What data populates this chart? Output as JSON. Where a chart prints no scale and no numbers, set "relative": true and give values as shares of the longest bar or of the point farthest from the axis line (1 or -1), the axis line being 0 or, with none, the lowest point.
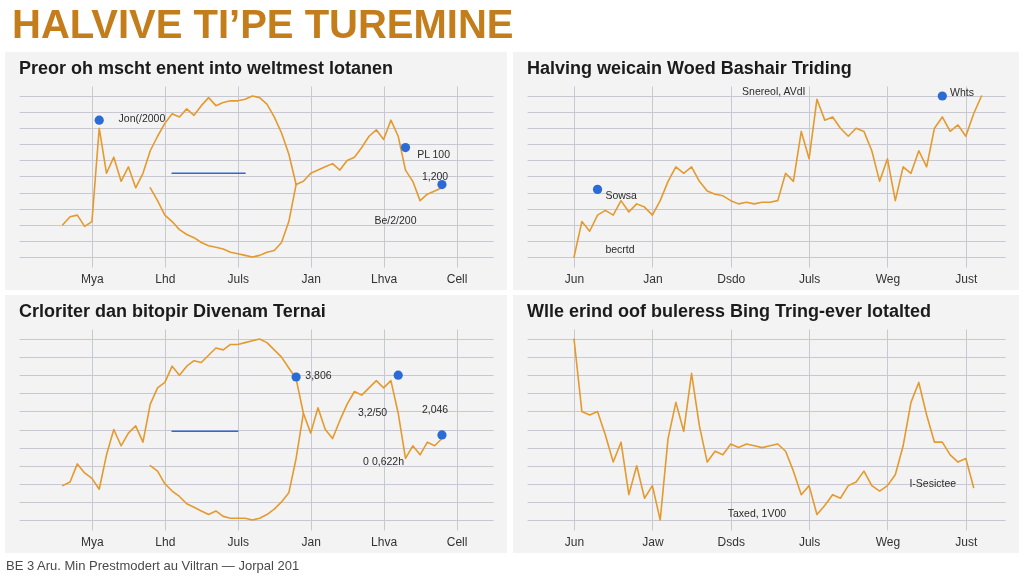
{
  "chart_data": [
    {
      "type": "other",
      "title": "HALVIVE TI’PE TUREMINE"
    },
    {
      "type": "line",
      "title": "Preor oh mscht enent into weltmest lotanen",
      "relative": true,
      "grid": true,
      "categories": [
        null,
        null,
        null,
        null,
        null,
        null,
        null,
        null,
        null,
        null,
        "Mya",
        null,
        null,
        null,
        null,
        null,
        null,
        null,
        null,
        null,
        "Lhd",
        null,
        null,
        null,
        null,
        null,
        null,
        null,
        null,
        null,
        "Juls",
        null,
        null,
        null,
        null,
        null,
        null,
        null,
        null,
        null,
        "Jan",
        null,
        null,
        null,
        null,
        null,
        null,
        null,
        null,
        null,
        "Lhva",
        null,
        null,
        null,
        null,
        null,
        null,
        null,
        null,
        null,
        "Cell",
        null,
        null,
        null,
        null,
        null
      ],
      "series": [
        {
          "color": "#e49a2f",
          "values": [
            null,
            null,
            null,
            null,
            null,
            null,
            0.2,
            0.25,
            0.26,
            0.19,
            0.22,
            0.8,
            0.52,
            0.62,
            0.47,
            0.56,
            0.43,
            0.52,
            0.66,
            0.75,
            0.83,
            0.89,
            0.87,
            0.92,
            0.88,
            0.94,
            0.99,
            0.94,
            0.96,
            0.97,
            0.97,
            0.98,
            1,
            0.99,
            0.95,
            0.87,
            0.77,
            0.64,
            0.45,
            0.47,
            0.52,
            0.54,
            0.56,
            0.58,
            0.54,
            0.6,
            0.62,
            0.68,
            0.75,
            0.79,
            0.73,
            0.85,
            0.75,
            0.54,
            0.47,
            0.35,
            0.39,
            0.41,
            0.43,
            null,
            null,
            null,
            null,
            null,
            null,
            null
          ]
        },
        {
          "color": "#e49a2f",
          "values": [
            null,
            null,
            null,
            null,
            null,
            null,
            null,
            null,
            null,
            null,
            null,
            null,
            null,
            null,
            null,
            null,
            null,
            null,
            0.43,
            0.35,
            0.26,
            0.22,
            0.17,
            0.14,
            0.12,
            0.09,
            0.07,
            0.06,
            0.05,
            0.03,
            0.02,
            0.01,
            0,
            0.01,
            0.03,
            0.04,
            0.09,
            0.22,
            0.45,
            null,
            null,
            null,
            null,
            null,
            null,
            null,
            null,
            null,
            null,
            null,
            null,
            null,
            null,
            null,
            null,
            null,
            null,
            null,
            null,
            null,
            null,
            null,
            null,
            null,
            null,
            null
          ]
        },
        {
          "color": "#2a6bd6",
          "values": [
            null,
            null,
            null,
            null,
            null,
            null,
            null,
            null,
            null,
            null,
            null,
            null,
            null,
            null,
            null,
            null,
            null,
            null,
            null,
            null,
            null,
            0.52,
            0.52,
            0.52,
            0.52,
            0.52,
            0.52,
            0.52,
            0.52,
            0.52,
            0.52,
            0.52,
            null,
            null,
            null,
            null,
            null,
            null,
            null,
            null,
            null,
            null,
            null,
            null,
            null,
            null,
            null,
            null,
            null,
            null,
            null,
            null,
            null,
            null,
            null,
            null,
            null,
            null,
            null,
            null,
            null,
            null,
            null,
            null,
            null,
            null
          ]
        },
        {
          "type": "scatter",
          "marker": "circle",
          "color": "#2a6bd6",
          "values": [
            null,
            null,
            null,
            null,
            null,
            null,
            null,
            null,
            null,
            null,
            null,
            0.85,
            null,
            null,
            null,
            null,
            null,
            null,
            null,
            null,
            null,
            null,
            null,
            null,
            null,
            null,
            null,
            null,
            null,
            null,
            null,
            null,
            null,
            null,
            null,
            null,
            null,
            null,
            null,
            null,
            null,
            null,
            null,
            null,
            null,
            null,
            null,
            null,
            null,
            null,
            null,
            null,
            null,
            0.68,
            null,
            null,
            null,
            null,
            0.45,
            null,
            null,
            null,
            null,
            null,
            null,
            null
          ]
        }
      ],
      "annotations": [
        "Jon(/2000",
        "PL 100",
        "1,200",
        "Be/2/200"
      ]
    },
    {
      "type": "line",
      "title": "Halving weicain Woed Bashair Triding",
      "relative": true,
      "grid": true,
      "categories": [
        null,
        null,
        null,
        null,
        null,
        null,
        "Jun",
        null,
        null,
        null,
        null,
        null,
        null,
        null,
        null,
        null,
        "Jan",
        null,
        null,
        null,
        null,
        null,
        null,
        null,
        null,
        null,
        "Dsdo",
        null,
        null,
        null,
        null,
        null,
        null,
        null,
        null,
        null,
        "Juls",
        null,
        null,
        null,
        null,
        null,
        null,
        null,
        null,
        null,
        "Weg",
        null,
        null,
        null,
        null,
        null,
        null,
        null,
        null,
        null,
        "Just",
        null,
        null,
        null,
        null,
        null
      ],
      "series": [
        {
          "color": "#e49a2f",
          "values": [
            null,
            null,
            null,
            null,
            null,
            null,
            0,
            0.22,
            0.16,
            0.26,
            0.29,
            0.26,
            0.35,
            0.28,
            0.33,
            0.31,
            0.26,
            0.35,
            0.47,
            0.56,
            0.52,
            0.56,
            0.47,
            0.41,
            0.39,
            0.38,
            0.35,
            0.33,
            0.34,
            0.33,
            0.34,
            0.34,
            0.35,
            0.52,
            0.47,
            0.78,
            0.61,
            0.98,
            0.85,
            0.87,
            0.8,
            0.75,
            0.8,
            0.78,
            0.66,
            0.47,
            0.61,
            0.35,
            0.56,
            0.52,
            0.66,
            0.56,
            0.8,
            0.87,
            0.78,
            0.82,
            0.75,
            0.89,
            1,
            null,
            null,
            null
          ]
        },
        {
          "type": "scatter",
          "marker": "circle",
          "color": "#2a6bd6",
          "values": [
            null,
            null,
            null,
            null,
            null,
            null,
            null,
            null,
            null,
            0.42,
            null,
            null,
            null,
            null,
            null,
            null,
            null,
            null,
            null,
            null,
            null,
            null,
            null,
            null,
            null,
            null,
            null,
            null,
            null,
            null,
            null,
            null,
            null,
            null,
            null,
            null,
            null,
            null,
            null,
            null,
            null,
            null,
            null,
            null,
            null,
            null,
            null,
            null,
            null,
            null,
            null,
            null,
            null,
            1,
            null,
            null,
            null,
            null,
            null,
            null,
            null,
            null
          ]
        }
      ],
      "annotations": [
        "Snereol, AVdI",
        "Sowsa",
        "becrtd",
        "Whts"
      ]
    },
    {
      "type": "line",
      "title": "Crloriter dan bitopir Divenam Ternai",
      "relative": true,
      "grid": true,
      "categories": [
        null,
        null,
        null,
        null,
        null,
        null,
        null,
        null,
        null,
        null,
        "Mya",
        null,
        null,
        null,
        null,
        null,
        null,
        null,
        null,
        null,
        "Lhd",
        null,
        null,
        null,
        null,
        null,
        null,
        null,
        null,
        null,
        "Juls",
        null,
        null,
        null,
        null,
        null,
        null,
        null,
        null,
        null,
        "Jan",
        null,
        null,
        null,
        null,
        null,
        null,
        null,
        null,
        null,
        "Lhva",
        null,
        null,
        null,
        null,
        null,
        null,
        null,
        null,
        null,
        "Cell",
        null,
        null,
        null,
        null,
        null
      ],
      "series": [
        {
          "color": "#e49a2f",
          "values": [
            null,
            null,
            null,
            null,
            null,
            null,
            0.19,
            0.21,
            0.31,
            0.26,
            0.23,
            0.17,
            0.36,
            0.5,
            0.41,
            0.48,
            0.52,
            0.43,
            0.64,
            0.73,
            0.76,
            0.85,
            0.8,
            0.85,
            0.88,
            0.87,
            0.91,
            0.95,
            0.94,
            0.97,
            0.97,
            0.98,
            0.99,
            1,
            0.98,
            0.94,
            0.9,
            0.84,
            0.78,
            0.59,
            0.48,
            0.62,
            0.5,
            0.45,
            0.55,
            0.64,
            0.71,
            0.69,
            0.73,
            0.77,
            0.73,
            0.77,
            0.59,
            0.34,
            0.41,
            0.36,
            0.43,
            0.41,
            0.45,
            null,
            null,
            null,
            null,
            null,
            null,
            null
          ]
        },
        {
          "color": "#e49a2f",
          "values": [
            null,
            null,
            null,
            null,
            null,
            null,
            null,
            null,
            null,
            null,
            null,
            null,
            null,
            null,
            null,
            null,
            null,
            null,
            0.3,
            0.27,
            0.2,
            0.16,
            0.13,
            0.09,
            0.07,
            0.05,
            0.03,
            0.05,
            0.02,
            0.01,
            0.01,
            0.01,
            0,
            0.01,
            0.03,
            0.06,
            0.1,
            0.15,
            0.34,
            0.59,
            null,
            null,
            null,
            null,
            null,
            null,
            null,
            null,
            null,
            null,
            null,
            null,
            null,
            null,
            null,
            null,
            null,
            null,
            null,
            null,
            null,
            null,
            null,
            null,
            null,
            null
          ]
        },
        {
          "color": "#2a6bd6",
          "values": [
            null,
            null,
            null,
            null,
            null,
            null,
            null,
            null,
            null,
            null,
            null,
            null,
            null,
            null,
            null,
            null,
            null,
            null,
            null,
            null,
            null,
            0.49,
            0.49,
            0.49,
            0.49,
            0.49,
            0.49,
            0.49,
            0.49,
            0.49,
            0.49,
            null,
            null,
            null,
            null,
            null,
            null,
            null,
            null,
            null,
            null,
            null,
            null,
            null,
            null,
            null,
            null,
            null,
            null,
            null,
            null,
            null,
            null,
            null,
            null,
            null,
            null,
            null,
            null,
            null,
            null,
            null,
            null,
            null,
            null,
            null
          ]
        },
        {
          "type": "scatter",
          "marker": "circle",
          "color": "#2a6bd6",
          "values": [
            null,
            null,
            null,
            null,
            null,
            null,
            null,
            null,
            null,
            null,
            null,
            null,
            null,
            null,
            null,
            null,
            null,
            null,
            null,
            null,
            null,
            null,
            null,
            null,
            null,
            null,
            null,
            null,
            null,
            null,
            null,
            null,
            null,
            null,
            null,
            null,
            null,
            null,
            0.79,
            null,
            null,
            null,
            null,
            null,
            null,
            null,
            null,
            null,
            null,
            null,
            null,
            null,
            0.8,
            null,
            null,
            null,
            null,
            null,
            0.47,
            null,
            null,
            null,
            null,
            null,
            null,
            null
          ]
        }
      ],
      "annotations": [
        "3,806",
        "3,2/50",
        "2,046",
        "0 0,622h"
      ]
    },
    {
      "type": "line",
      "title": "Wlle erind oof buleress Bing Tring-ever lotalted",
      "relative": true,
      "grid": true,
      "categories": [
        null,
        null,
        null,
        null,
        null,
        null,
        "Jun",
        null,
        null,
        null,
        null,
        null,
        null,
        null,
        null,
        null,
        "Jaw",
        null,
        null,
        null,
        null,
        null,
        null,
        null,
        null,
        null,
        "Dsds",
        null,
        null,
        null,
        null,
        null,
        null,
        null,
        null,
        null,
        "Juls",
        null,
        null,
        null,
        null,
        null,
        null,
        null,
        null,
        null,
        "Weg",
        null,
        null,
        null,
        null,
        null,
        null,
        null,
        null,
        null,
        "Just",
        null,
        null,
        null,
        null,
        null
      ],
      "series": [
        {
          "color": "#e49a2f",
          "values": [
            null,
            null,
            null,
            null,
            null,
            null,
            1,
            0.6,
            0.58,
            0.6,
            0.47,
            0.32,
            0.43,
            0.14,
            0.3,
            0.12,
            0.19,
            0,
            0.45,
            0.65,
            0.49,
            0.81,
            0.52,
            0.32,
            0.38,
            0.36,
            0.42,
            0.4,
            0.42,
            0.41,
            0.4,
            0.41,
            0.42,
            0.38,
            0.27,
            0.14,
            0.19,
            0.03,
            0.08,
            0.14,
            0.12,
            0.19,
            0.21,
            0.27,
            0.19,
            0.16,
            0.19,
            0.25,
            0.41,
            0.65,
            0.76,
            0.58,
            0.43,
            0.43,
            0.36,
            0.32,
            0.34,
            0.18,
            null,
            null,
            null,
            null
          ]
        }
      ],
      "annotations": [
        "Taxed, 1V00",
        "I-Sesictee"
      ]
    },
    {
      "type": "other",
      "annotations": [
        "BE 3 Aru. Min Prestmodert au Viltran — Jorpal 201"
      ]
    }
  ]
}
